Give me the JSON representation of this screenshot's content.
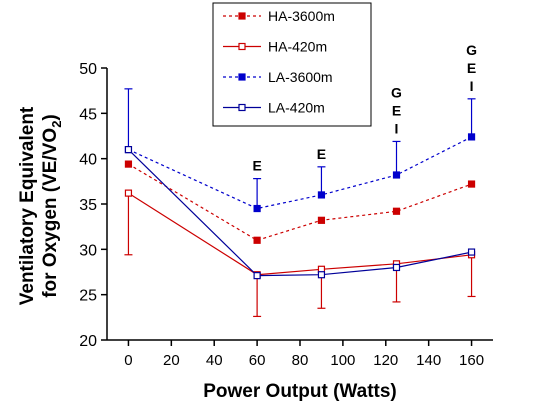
{
  "chart_data": {
    "type": "line",
    "xlabel": "Power Output (Watts)",
    "ylabel_line1": "Ventilatory Equivalent",
    "ylabel_line2_prefix": "for Oxygen (VE/VO",
    "ylabel_line2_sub": "2",
    "ylabel_line2_suffix": ")",
    "xlim": [
      -10,
      170
    ],
    "ylim": [
      20,
      50
    ],
    "xticks": [
      0,
      20,
      40,
      60,
      80,
      100,
      120,
      140,
      160
    ],
    "yticks": [
      20,
      25,
      30,
      35,
      40,
      45,
      50
    ],
    "legend_position": "top-center",
    "series": [
      {
        "name": "HA-3600m",
        "color": "#cc0000",
        "line": "dashed",
        "marker": "filled-square",
        "x": [
          0,
          60,
          90,
          125,
          160
        ],
        "y": [
          39.4,
          31.0,
          33.2,
          34.2,
          37.2
        ],
        "error_upper": [
          null,
          null,
          null,
          null,
          null
        ],
        "error_lower": [
          null,
          null,
          null,
          null,
          null
        ]
      },
      {
        "name": "HA-420m",
        "color": "#cc0000",
        "line": "solid",
        "marker": "open-square",
        "x": [
          0,
          60,
          90,
          125,
          160
        ],
        "y": [
          36.2,
          27.2,
          27.8,
          28.4,
          29.4
        ],
        "error_upper": [
          null,
          null,
          null,
          null,
          null
        ],
        "error_lower": [
          29.4,
          22.6,
          23.5,
          24.2,
          24.8
        ]
      },
      {
        "name": "LA-3600m",
        "color": "#0000cc",
        "line": "dashed",
        "marker": "filled-square",
        "x": [
          0,
          60,
          90,
          125,
          160
        ],
        "y": [
          41.0,
          34.5,
          36.0,
          38.2,
          42.4
        ],
        "error_upper": [
          47.7,
          37.8,
          39.1,
          41.9,
          46.6
        ],
        "error_lower": [
          null,
          null,
          null,
          null,
          null
        ]
      },
      {
        "name": "LA-420m",
        "color": "#000099",
        "line": "solid",
        "marker": "open-square",
        "x": [
          0,
          60,
          90,
          125,
          160
        ],
        "y": [
          41.0,
          27.1,
          27.2,
          28.0,
          29.7
        ],
        "error_upper": [
          null,
          null,
          null,
          null,
          null
        ],
        "error_lower": [
          null,
          null,
          null,
          null,
          null
        ]
      }
    ],
    "annotations": [
      {
        "x": 60,
        "lines": [
          "E"
        ]
      },
      {
        "x": 90,
        "lines": [
          "E"
        ]
      },
      {
        "x": 125,
        "lines": [
          "G",
          "E",
          "I"
        ]
      },
      {
        "x": 160,
        "lines": [
          "G",
          "E",
          "I"
        ]
      }
    ]
  }
}
